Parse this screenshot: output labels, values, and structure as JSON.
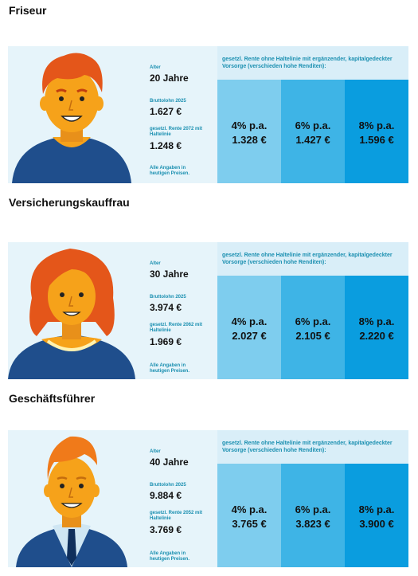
{
  "header_text": "gesetzl. Rente ohne Haltelinie mit ergänzender, kapitalgedeckter Vorsorge (verschieden hohe Renditen):",
  "labels": {
    "age": "Alter",
    "gross": "Bruttolohn 2025",
    "note": "Alle Angaben in heutigen Preisen."
  },
  "profiles": [
    {
      "title": "Friseur",
      "age": "20 Jahre",
      "gross": "1.627 €",
      "pension_label": "gesetzl. Rente 2072 mit Haltelinie",
      "pension": "1.248 €",
      "returns": [
        {
          "rate": "4% p.a.",
          "amount": "1.328 €"
        },
        {
          "rate": "6% p.a.",
          "amount": "1.427 €"
        },
        {
          "rate": "8% p.a.",
          "amount": "1.596 €"
        }
      ]
    },
    {
      "title": "Versicherungskauffrau",
      "age": "30 Jahre",
      "gross": "3.974 €",
      "pension_label": "gesetzl. Rente 2062 mit Haltelinie",
      "pension": "1.969 €",
      "returns": [
        {
          "rate": "4% p.a.",
          "amount": "2.027 €"
        },
        {
          "rate": "6% p.a.",
          "amount": "2.105 €"
        },
        {
          "rate": "8% p.a.",
          "amount": "2.220 €"
        }
      ]
    },
    {
      "title": "Geschäftsführer",
      "age": "40 Jahre",
      "gross": "9.884 €",
      "pension_label": "gesetzl. Rente 2052 mit Haltelinie",
      "pension": "3.769 €",
      "returns": [
        {
          "rate": "4% p.a.",
          "amount": "3.765 €"
        },
        {
          "rate": "6% p.a.",
          "amount": "3.823 €"
        },
        {
          "rate": "8% p.a.",
          "amount": "3.900 €"
        }
      ]
    }
  ],
  "colors": {
    "card_bg": "#e6f4fa",
    "col1": "#7ecdee",
    "col2": "#3eb4e6",
    "col3": "#0a9ddf",
    "label_blue": "#1a8fb0"
  }
}
